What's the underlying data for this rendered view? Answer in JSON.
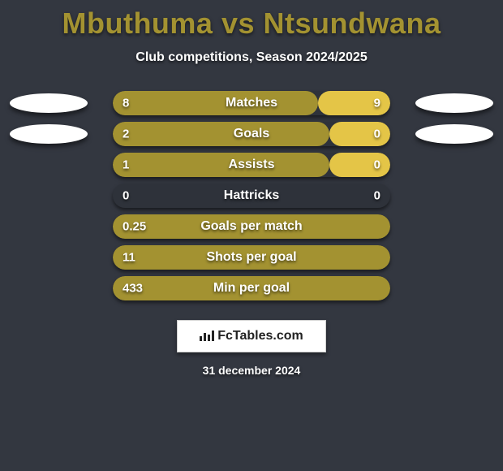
{
  "title": "Mbuthuma vs Ntsundwana",
  "subtitle": "Club competitions, Season 2024/2025",
  "date": "31 december 2024",
  "logo": {
    "text": "FcTables.com"
  },
  "colors": {
    "background": "#333740",
    "title": "#a39231",
    "text": "#ffffff",
    "track": "#2e323a",
    "bar_left": "#a39231",
    "bar_right": "#e4c547",
    "decor": "#ffffff"
  },
  "bar_track_width": 342,
  "stats": [
    {
      "label": "Matches",
      "left_val": "8",
      "right_val": "9",
      "left_pct": 74,
      "right_pct": 26,
      "show_decor": true
    },
    {
      "label": "Goals",
      "left_val": "2",
      "right_val": "0",
      "left_pct": 78,
      "right_pct": 22,
      "show_decor": true
    },
    {
      "label": "Assists",
      "left_val": "1",
      "right_val": "0",
      "left_pct": 78,
      "right_pct": 22,
      "show_decor": false
    },
    {
      "label": "Hattricks",
      "left_val": "0",
      "right_val": "0",
      "left_pct": 0,
      "right_pct": 0,
      "show_decor": false
    },
    {
      "label": "Goals per match",
      "left_val": "0.25",
      "right_val": "",
      "left_pct": 100,
      "right_pct": 0,
      "show_decor": false
    },
    {
      "label": "Shots per goal",
      "left_val": "11",
      "right_val": "",
      "left_pct": 100,
      "right_pct": 0,
      "show_decor": false
    },
    {
      "label": "Min per goal",
      "left_val": "433",
      "right_val": "",
      "left_pct": 100,
      "right_pct": 0,
      "show_decor": false
    }
  ]
}
